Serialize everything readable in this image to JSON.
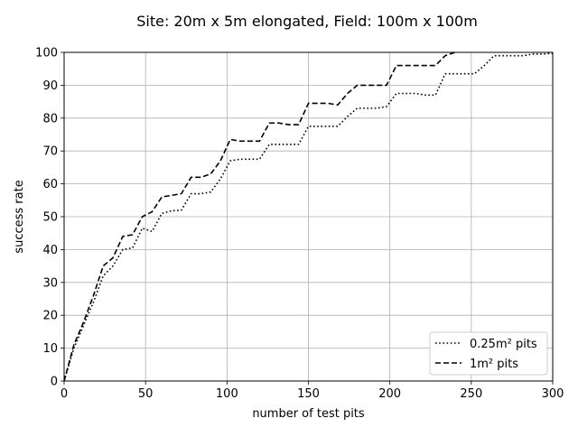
{
  "chart_data": {
    "type": "line",
    "title": "Site: 20m x 5m elongated, Field: 100m x 100m",
    "xlabel": "number of test pits",
    "ylabel": "success rate",
    "xlim": [
      0,
      300
    ],
    "ylim": [
      0,
      100
    ],
    "xticks": [
      0,
      50,
      100,
      150,
      200,
      250,
      300
    ],
    "yticks": [
      0,
      10,
      20,
      30,
      40,
      50,
      60,
      70,
      80,
      90,
      100
    ],
    "grid": true,
    "legend": "lower-right",
    "series": [
      {
        "name": "0.25m² pits",
        "style": "dotted",
        "color": "#000000",
        "x": [
          0,
          6,
          12,
          18,
          24,
          30,
          36,
          42,
          48,
          54,
          60,
          66,
          72,
          78,
          84,
          90,
          96,
          102,
          108,
          114,
          120,
          126,
          132,
          138,
          144,
          150,
          156,
          162,
          168,
          174,
          180,
          186,
          192,
          198,
          204,
          210,
          216,
          222,
          228,
          234,
          240,
          246,
          252,
          258,
          264,
          270,
          276,
          282,
          288,
          294,
          300
        ],
        "y": [
          0,
          10,
          17,
          24,
          32,
          35,
          40,
          40.5,
          46.5,
          45.5,
          51,
          51.8,
          52,
          57,
          57,
          57.5,
          61.5,
          67,
          67.5,
          67.5,
          67.5,
          72,
          72,
          72,
          72,
          77.5,
          77.5,
          77.5,
          77.5,
          80.5,
          83,
          83,
          83,
          83.5,
          87.5,
          87.5,
          87.5,
          87,
          87,
          93.5,
          93.5,
          93.5,
          93.5,
          96,
          99,
          99,
          99,
          99,
          99.5,
          99.5,
          99.7
        ]
      },
      {
        "name": "1m² pits",
        "style": "dashed",
        "color": "#000000",
        "x": [
          0,
          6,
          12,
          18,
          24,
          30,
          36,
          42,
          48,
          54,
          60,
          66,
          72,
          78,
          84,
          90,
          96,
          102,
          108,
          114,
          120,
          126,
          132,
          138,
          144,
          150,
          156,
          162,
          168,
          174,
          180,
          186,
          192,
          198,
          204,
          210,
          216,
          222,
          228,
          234,
          240
        ],
        "y": [
          0,
          11,
          18,
          26,
          35,
          37.5,
          44,
          44.5,
          50,
          51.5,
          56,
          56.5,
          57,
          62,
          62,
          63,
          67,
          73.5,
          73,
          73,
          73,
          78.5,
          78.5,
          78,
          78,
          84.5,
          84.5,
          84.5,
          84,
          87.5,
          90,
          90,
          90,
          90,
          96,
          96,
          96,
          96,
          96,
          99,
          100
        ]
      }
    ]
  }
}
